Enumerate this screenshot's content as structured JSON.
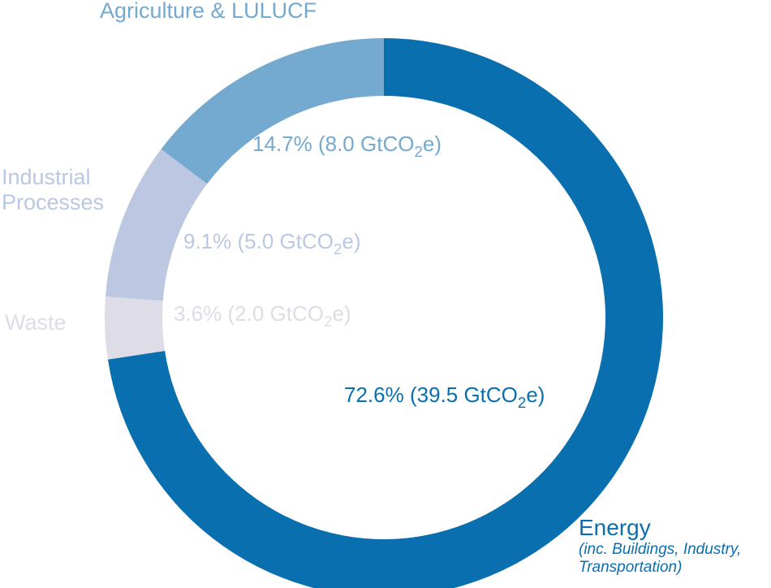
{
  "chart_data": {
    "type": "pie",
    "slices": [
      {
        "key": "energy",
        "category": "Energy",
        "note": "(inc. Buildings, Industry, Transportation)",
        "note_line1": "(inc. Buildings, Industry,",
        "note_line2": "Transportation)",
        "percent": 72.6,
        "value": 39.5,
        "percent_text": "72.6%",
        "value_text": "(39.5 GtCO",
        "value_sub": "2",
        "value_tail": "e)",
        "color": "#0a6faf"
      },
      {
        "key": "waste",
        "category": "Waste",
        "percent": 3.6,
        "value": 2.0,
        "percent_text": "3.6%",
        "value_text": "(2.0 GtCO",
        "value_sub": "2",
        "value_tail": "e)",
        "color": "#dedce6"
      },
      {
        "key": "industrial",
        "category": "Industrial Processes",
        "category_line1": "Industrial",
        "category_line2": "Processes",
        "percent": 9.1,
        "value": 5.0,
        "percent_text": "9.1%",
        "value_text": "(5.0 GtCO",
        "value_sub": "2",
        "value_tail": "e)",
        "color": "#bcc8e1"
      },
      {
        "key": "agriculture",
        "category": "Agriculture & LULUCF",
        "percent": 14.7,
        "value": 8.0,
        "percent_text": "14.7%",
        "value_text": "(8.0 GtCO",
        "value_sub": "2",
        "value_tail": "e)",
        "color": "#74a9d0"
      }
    ],
    "unit": "GtCO2e",
    "donut": true,
    "start_angle": "12 o'clock",
    "direction": "clockwise",
    "legend": "none",
    "title": ""
  }
}
